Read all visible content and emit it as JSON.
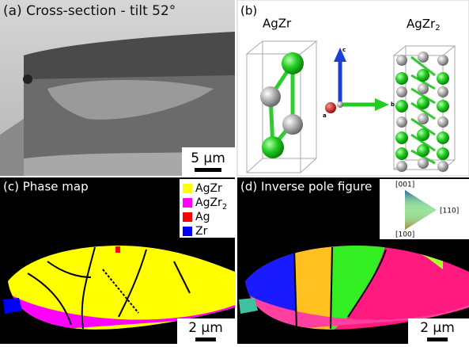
{
  "panels": {
    "a": {
      "title": "(a) Cross-section - tilt 52°",
      "scale_bar": "5 µm"
    },
    "b": {
      "label": "(b)",
      "phase1": "AgZr",
      "phase2": {
        "base": "AgZr",
        "sub": "2"
      },
      "axes": {
        "c": "c",
        "a": "a",
        "b": "b"
      }
    },
    "c": {
      "title": "(c) Phase map",
      "legend": [
        {
          "name": {
            "base": "AgZr",
            "sub": ""
          },
          "color": "#ffff00"
        },
        {
          "name": {
            "base": "AgZr",
            "sub": "2"
          },
          "color": "#ff00ff"
        },
        {
          "name": {
            "base": "Ag",
            "sub": ""
          },
          "color": "#ff0000"
        },
        {
          "name": {
            "base": "Zr",
            "sub": ""
          },
          "color": "#0000ff"
        }
      ],
      "scale_bar": "2 µm"
    },
    "d": {
      "title": "(d) Inverse pole figure",
      "key": {
        "top": "[001]",
        "right": "[110]",
        "bottom": "[100]"
      },
      "scale_bar": "2 µm"
    }
  }
}
